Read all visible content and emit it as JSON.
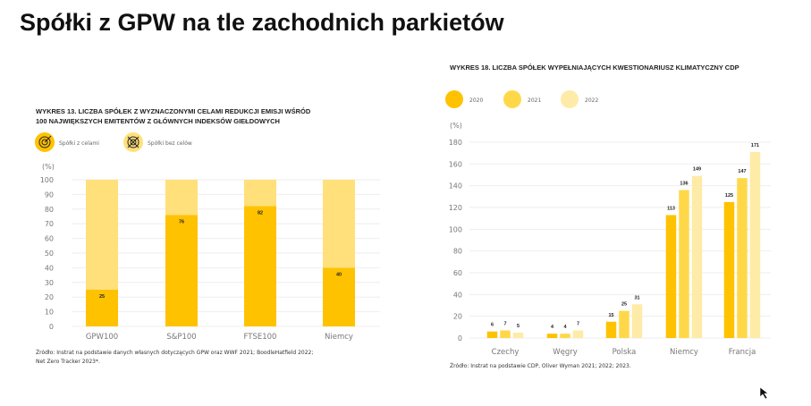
{
  "page_title": "Spółki z GPW na tle zachodnich parkietów",
  "chart_data": [
    {
      "type": "bar",
      "stacked": true,
      "title_line1": "WYKRES 13. LICZBA SPÓŁEK Z WYZNACZONYMI CELAMI REDUKCJI EMISJI WŚRÓD",
      "title_line2": "100 NAJWIĘKSZYCH EMITENTÓW Z GŁÓWNYCH INDEKSÓW GIEŁDOWYCH",
      "ylabel": "(%)",
      "ylim": [
        0,
        100
      ],
      "yticks": [
        0,
        10,
        20,
        30,
        40,
        50,
        60,
        70,
        80,
        90,
        100
      ],
      "categories": [
        "GPW100",
        "S&P100",
        "FTSE100",
        "Niemcy"
      ],
      "series": [
        {
          "name": "Spółki z celami",
          "values": [
            25,
            76,
            82,
            40
          ],
          "color": "#FFC200",
          "icon": "target-icon"
        },
        {
          "name": "Spółki bez celów",
          "values": [
            75,
            24,
            18,
            60
          ],
          "color": "#FFE07A",
          "icon": "target-cross-icon"
        }
      ],
      "source_line1": "Źródło: Instrat na podstawie danych własnych dotyczących GPW oraz WWF 2021; BoodleHatfield 2022;",
      "source_line2": "Net Zero Tracker 2023*."
    },
    {
      "type": "bar",
      "title": "WYKRES 18. LICZBA SPÓŁEK WYPEŁNIAJĄCYCH KWESTIONARIUSZ KLIMATYCZNY CDP",
      "ylabel": "(%)",
      "ylim": [
        0,
        180
      ],
      "yticks": [
        0,
        20,
        40,
        60,
        80,
        100,
        120,
        140,
        160,
        180
      ],
      "categories": [
        "Czechy",
        "Węgry",
        "Polska",
        "Niemcy",
        "Francja"
      ],
      "series": [
        {
          "name": "2020",
          "values": [
            6,
            4,
            15,
            113,
            125
          ],
          "color": "#FFC200"
        },
        {
          "name": "2021",
          "values": [
            7,
            4,
            25,
            136,
            147
          ],
          "color": "#FFD84A"
        },
        {
          "name": "2022",
          "values": [
            5,
            7,
            31,
            149,
            171
          ],
          "color": "#FFEBA8"
        }
      ],
      "source": "Źródło: Instrat na podstawie CDP, Oliver Wyman 2021; 2022; 2023."
    }
  ]
}
